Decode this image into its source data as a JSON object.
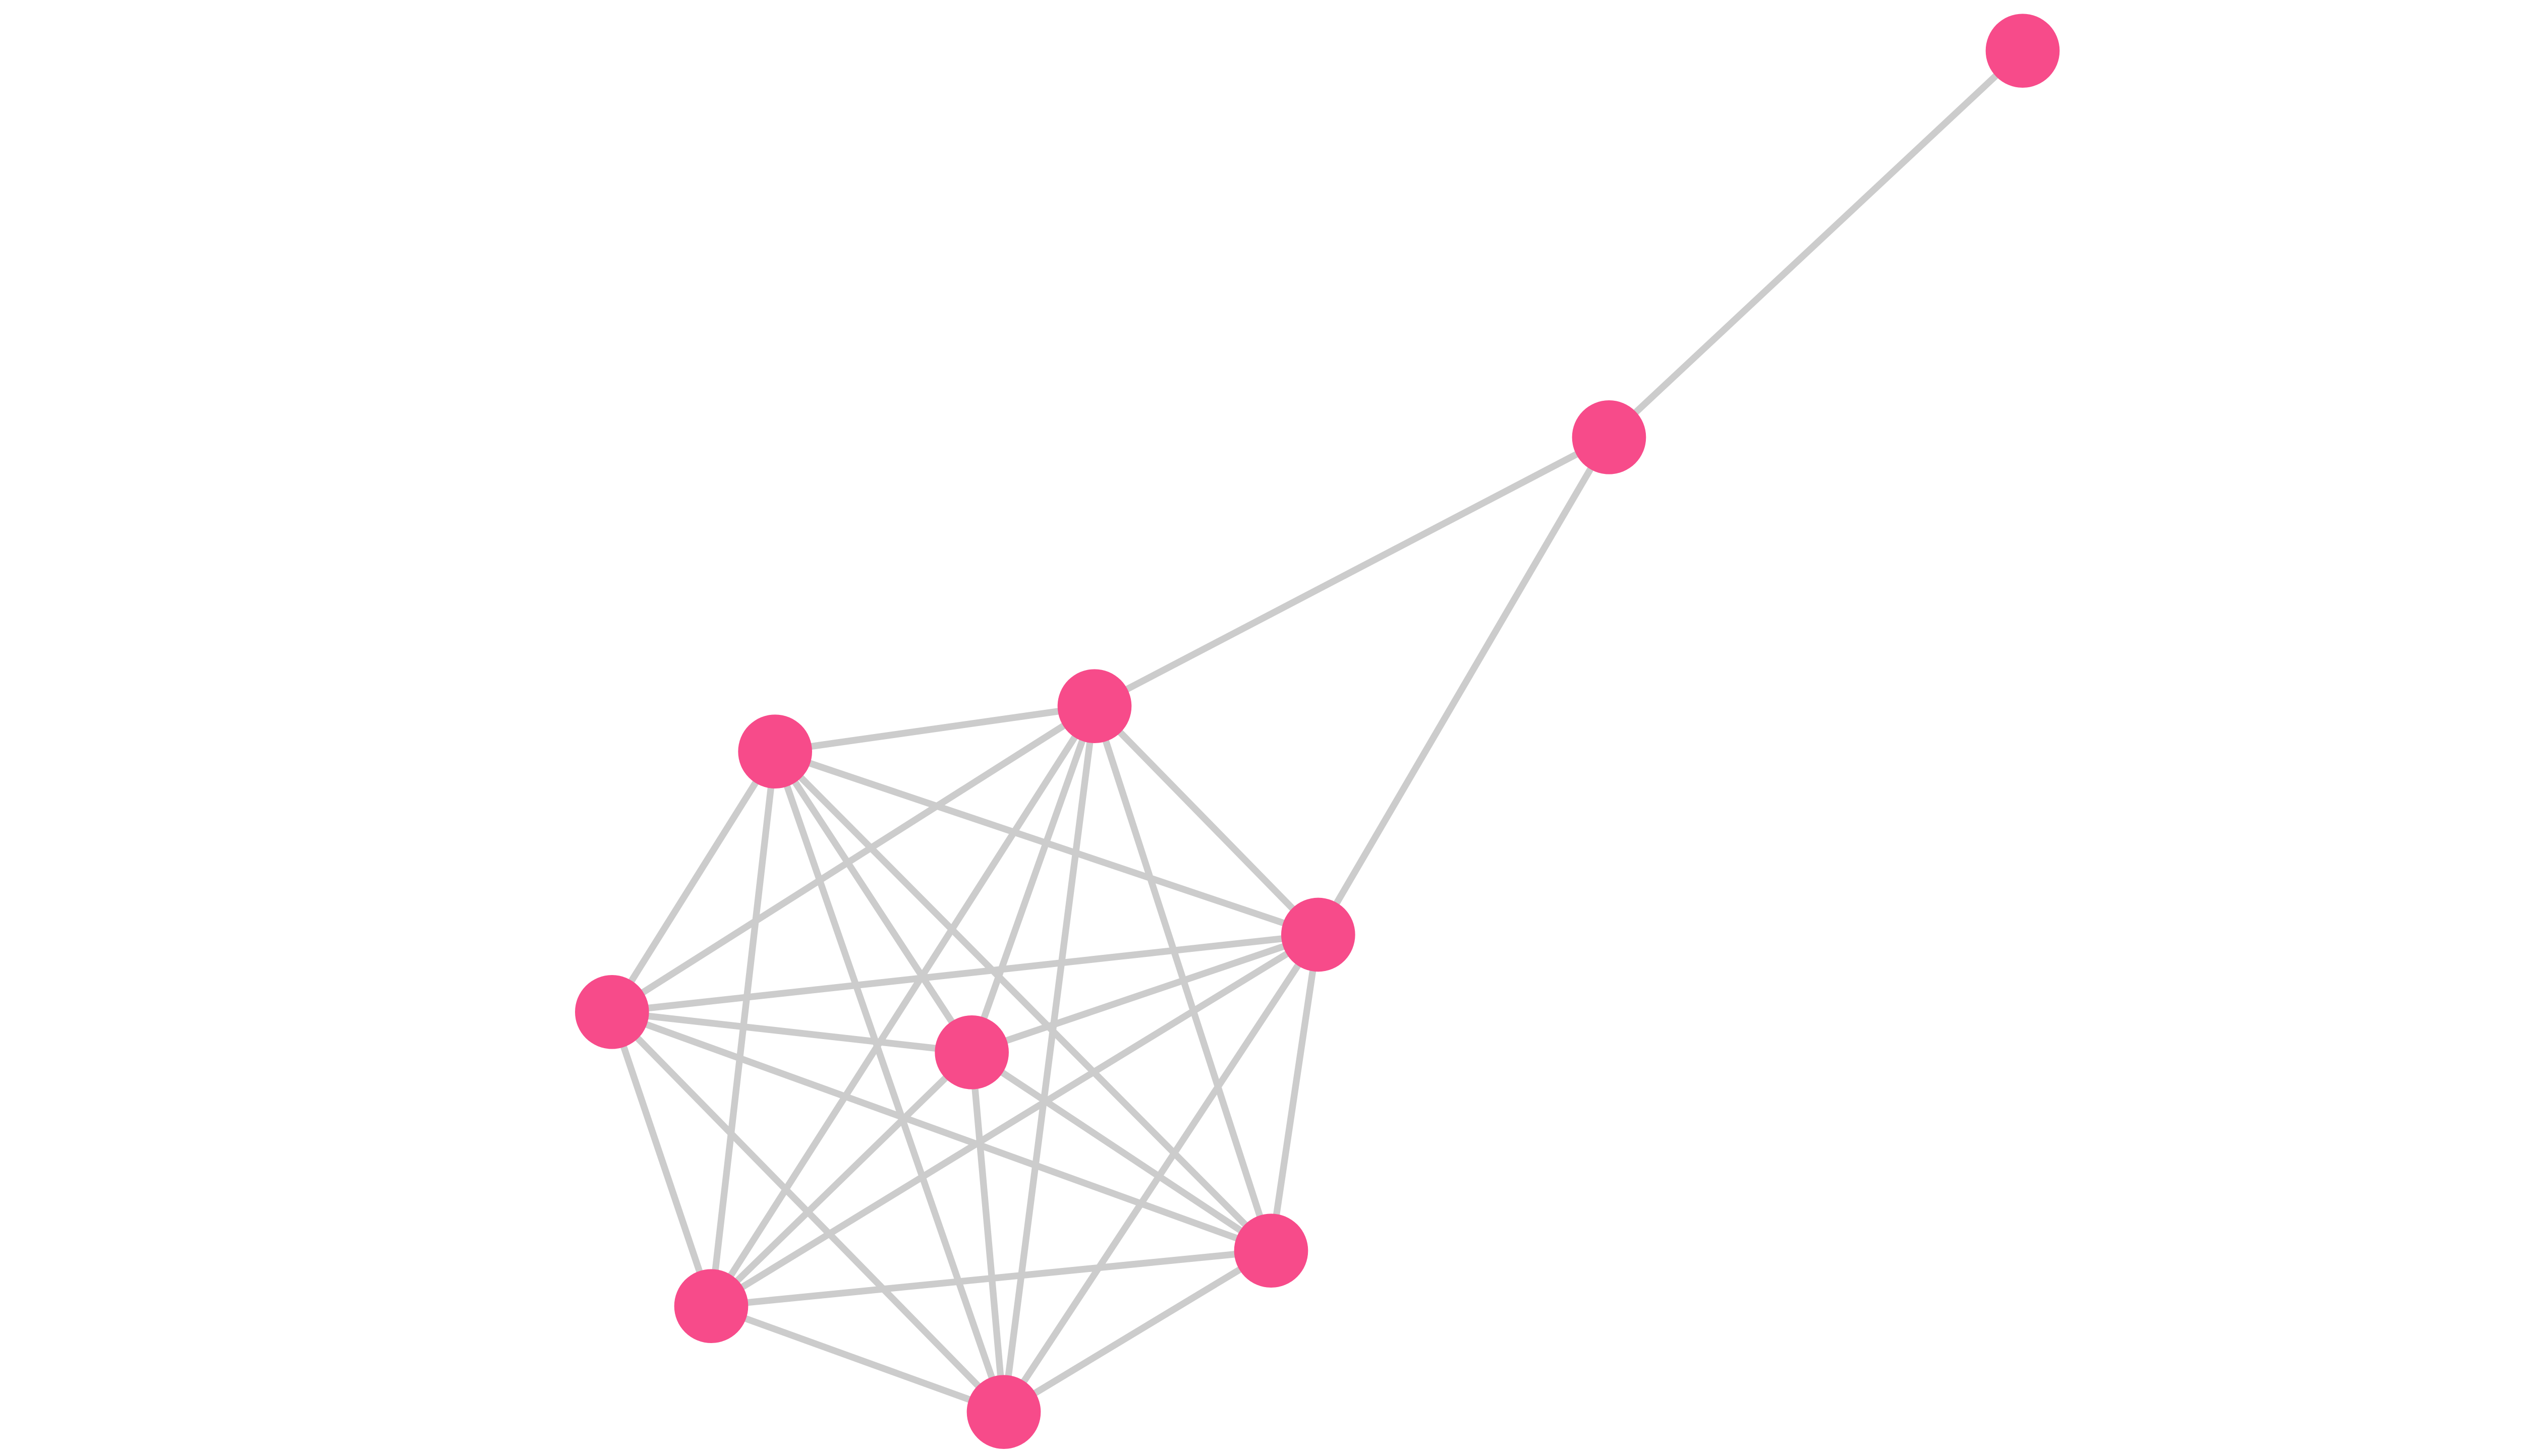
{
  "colors": {
    "node": "#f74b8a",
    "edge": "#cccccc",
    "background": "#ffffff"
  },
  "nodes": [
    "n0",
    "n1",
    "n2",
    "n3",
    "n4",
    "n5",
    "n6",
    "n7",
    "n8",
    "n9"
  ],
  "edges": [
    [
      "n0",
      "n1"
    ],
    [
      "n1",
      "n2"
    ],
    [
      "n1",
      "n4"
    ],
    [
      "n2",
      "n3"
    ],
    [
      "n2",
      "n4"
    ],
    [
      "n2",
      "n5"
    ],
    [
      "n2",
      "n6"
    ],
    [
      "n2",
      "n7"
    ],
    [
      "n2",
      "n8"
    ],
    [
      "n2",
      "n9"
    ],
    [
      "n3",
      "n4"
    ],
    [
      "n3",
      "n5"
    ],
    [
      "n3",
      "n6"
    ],
    [
      "n3",
      "n7"
    ],
    [
      "n3",
      "n8"
    ],
    [
      "n3",
      "n9"
    ],
    [
      "n4",
      "n5"
    ],
    [
      "n4",
      "n6"
    ],
    [
      "n4",
      "n7"
    ],
    [
      "n4",
      "n8"
    ],
    [
      "n4",
      "n9"
    ],
    [
      "n5",
      "n6"
    ],
    [
      "n5",
      "n7"
    ],
    [
      "n5",
      "n8"
    ],
    [
      "n5",
      "n9"
    ],
    [
      "n6",
      "n7"
    ],
    [
      "n6",
      "n8"
    ],
    [
      "n6",
      "n9"
    ],
    [
      "n7",
      "n8"
    ],
    [
      "n7",
      "n9"
    ],
    [
      "n8",
      "n9"
    ]
  ]
}
